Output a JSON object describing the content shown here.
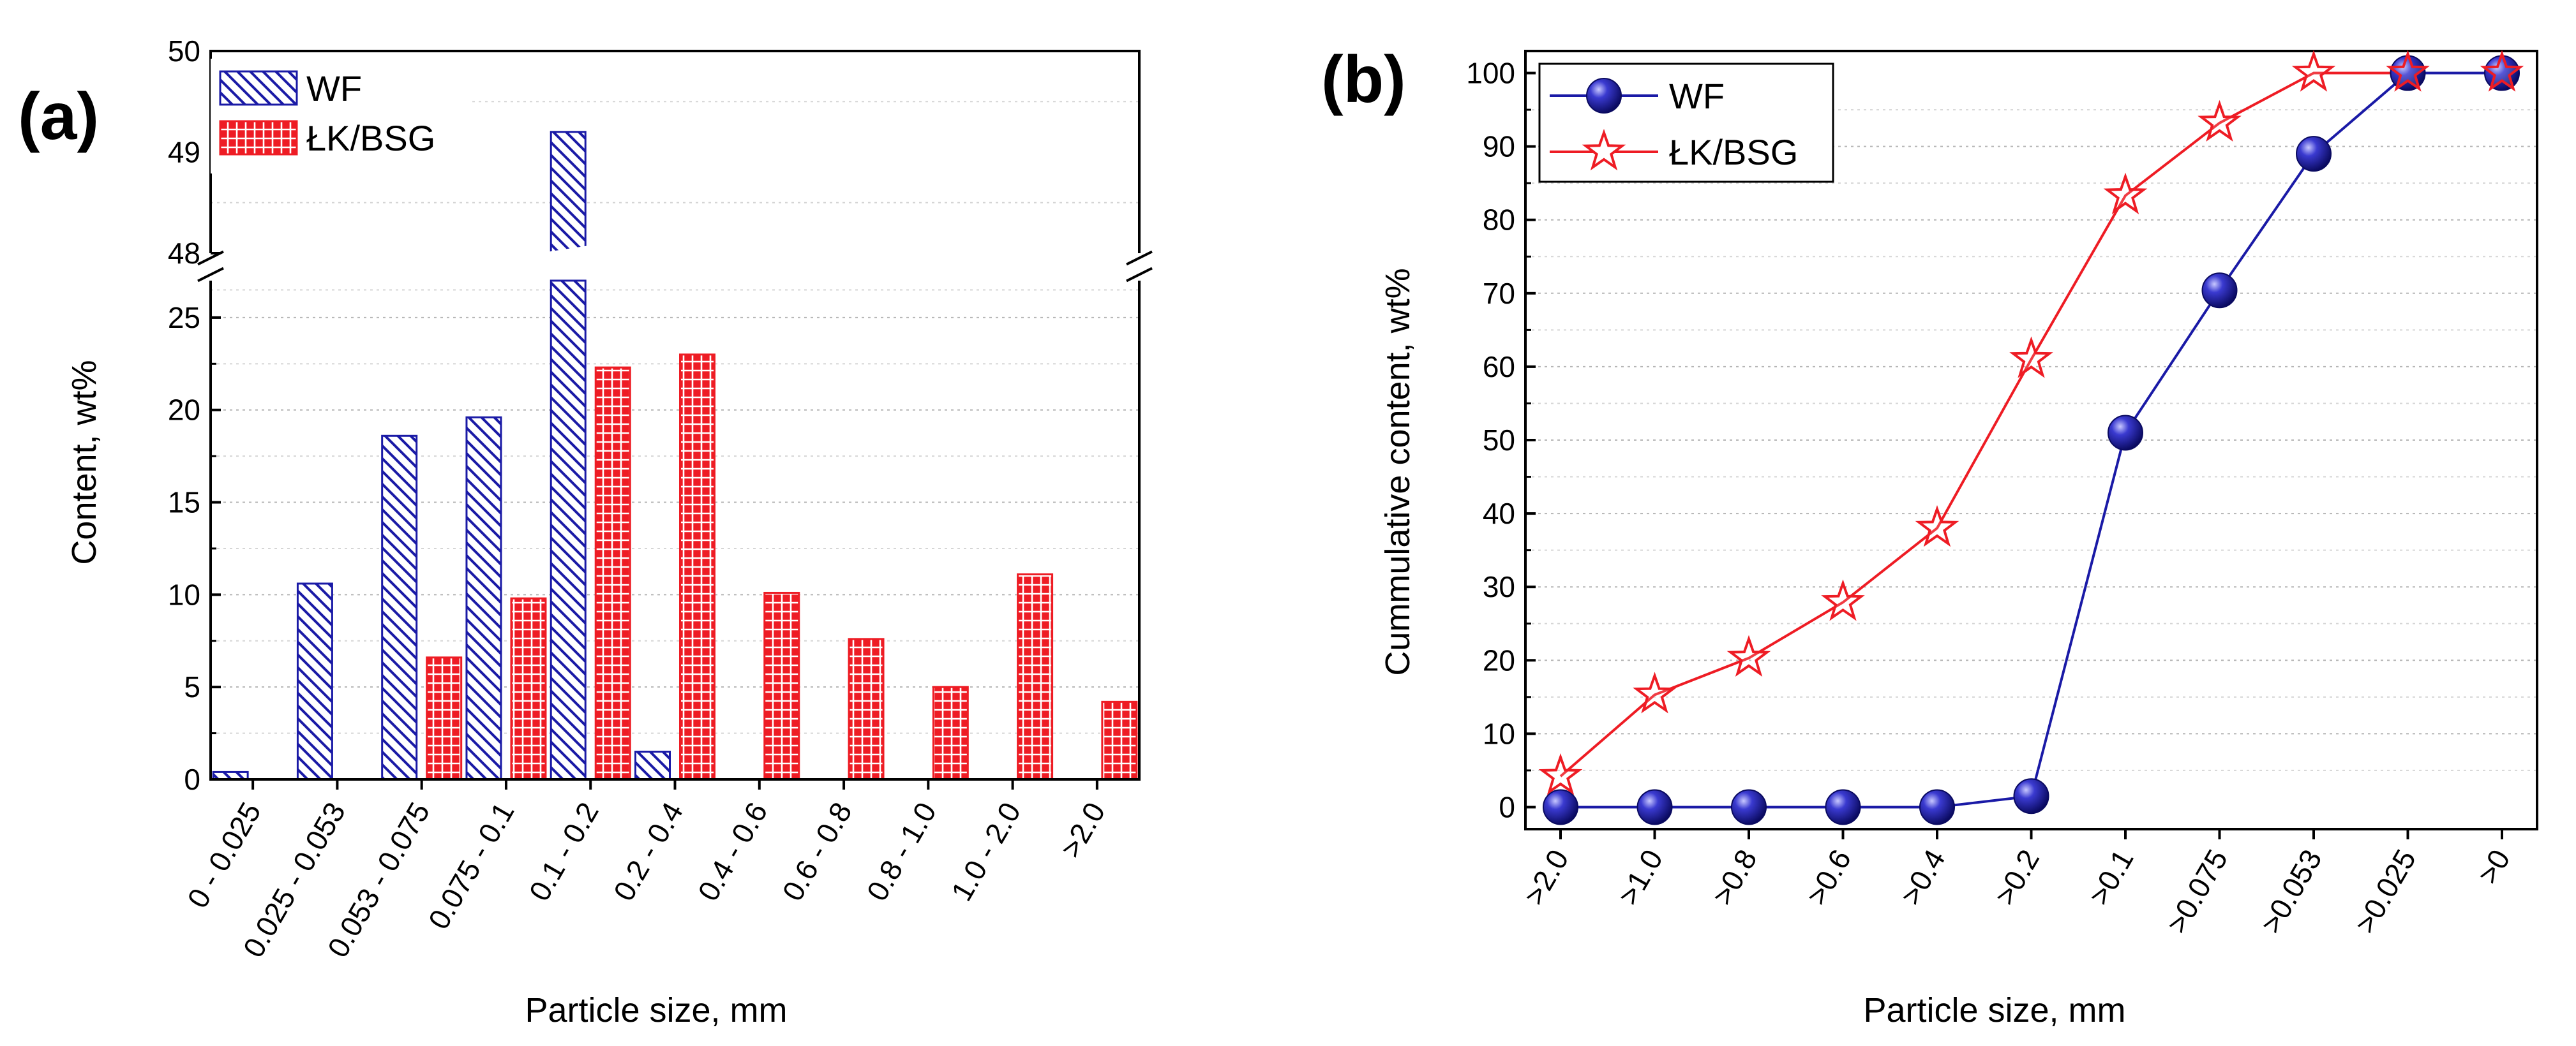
{
  "chart_data": [
    {
      "panel_label": "(a)",
      "type": "bar",
      "xlabel": "Particle size, mm",
      "ylabel": "Content, wt%",
      "categories": [
        "0 - 0.025",
        "0.025 - 0.053",
        "0.053 - 0.075",
        "0.075 - 0.1",
        "0.1 - 0.2",
        "0.2 - 0.4",
        "0.4 - 0.6",
        "0.6 - 0.8",
        "0.8 - 1.0",
        "1.0 - 2.0",
        ">2.0"
      ],
      "series": [
        {
          "name": "WF",
          "color": "#1a1aa6",
          "pattern": "diagonal-hatch",
          "values": [
            0.4,
            10.6,
            18.6,
            19.6,
            49.2,
            1.5,
            0,
            0,
            0,
            0,
            0
          ]
        },
        {
          "name": "ŁK/BSG",
          "color": "#ee1c24",
          "pattern": "grid",
          "values": [
            0,
            0,
            6.6,
            9.8,
            22.3,
            23.0,
            10.1,
            7.6,
            5.0,
            11.1,
            4.2
          ]
        }
      ],
      "y_axis_lower": {
        "range": [
          0,
          27
        ],
        "ticks": [
          "0",
          "5",
          "10",
          "15",
          "20",
          "25"
        ]
      },
      "y_axis_upper": {
        "range": [
          48,
          50
        ],
        "ticks": [
          "48",
          "49",
          "50"
        ]
      },
      "axis_break": true,
      "legend": "top-left"
    },
    {
      "panel_label": "(b)",
      "type": "line",
      "xlabel": "Particle size, mm",
      "ylabel": "Cummulative content, wt%",
      "categories": [
        ">2.0",
        ">1.0",
        ">0.8",
        ">0.6",
        ">0.4",
        ">0.2",
        ">0.1",
        ">0.075",
        ">0.053",
        ">0.025",
        ">0"
      ],
      "series": [
        {
          "name": "WF",
          "color": "#1a1aa6",
          "marker": "sphere",
          "values": [
            0,
            0,
            0,
            0,
            0,
            1.5,
            51,
            70.4,
            89,
            100,
            100
          ]
        },
        {
          "name": "ŁK/BSG",
          "color": "#ee1c24",
          "marker": "star",
          "values": [
            4.2,
            15.3,
            20.3,
            27.9,
            38,
            61,
            83.3,
            93.2,
            100,
            100,
            100
          ]
        }
      ],
      "ylim": [
        -3,
        103
      ],
      "yticks": [
        "0",
        "10",
        "20",
        "30",
        "40",
        "50",
        "60",
        "70",
        "80",
        "90",
        "100"
      ],
      "legend": "top-left"
    }
  ]
}
